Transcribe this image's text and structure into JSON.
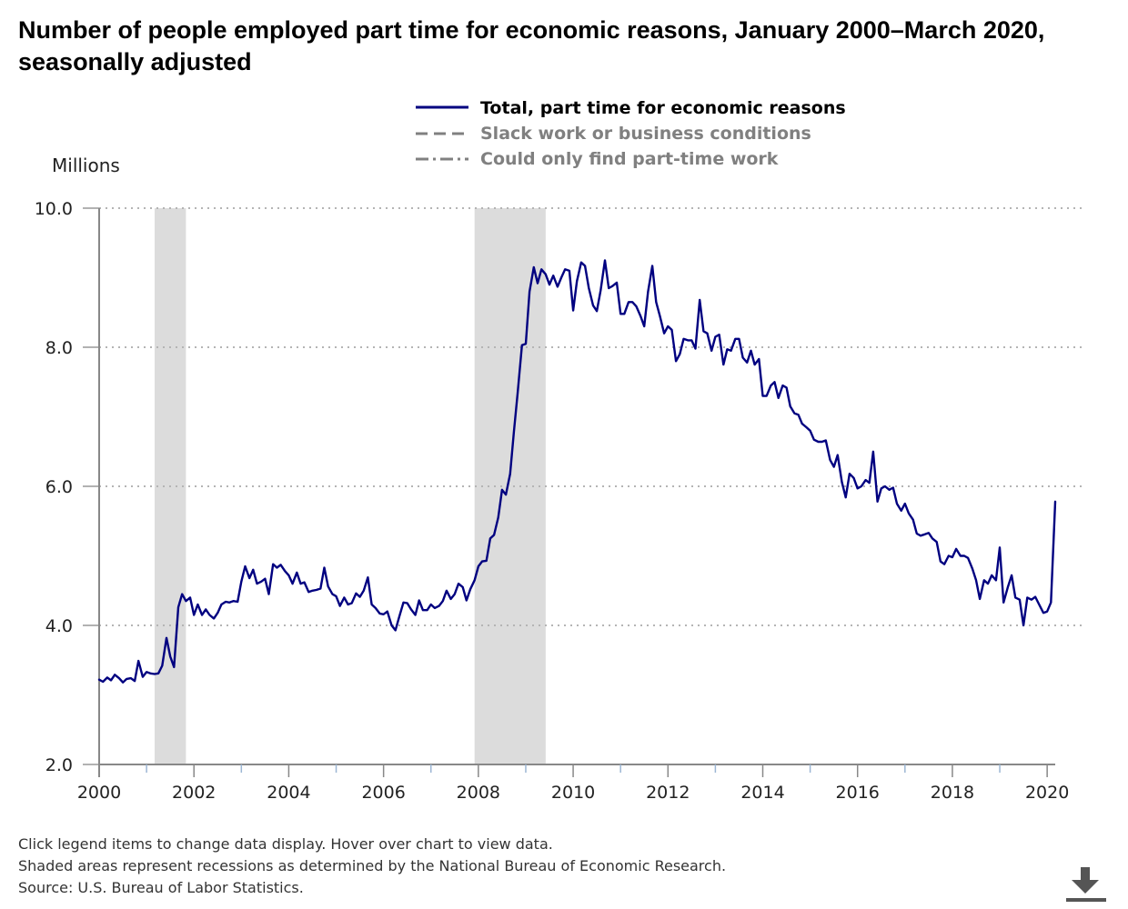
{
  "chart_data": {
    "type": "line",
    "title": "Number of people employed part time for economic reasons, January 2000–March 2020, seasonally adjusted",
    "ylabel": "Millions",
    "xlabel": "",
    "x_range": [
      2000,
      2020.17
    ],
    "ylim": [
      2.0,
      10.0
    ],
    "x_ticks": [
      "2000",
      "2002",
      "2004",
      "2006",
      "2008",
      "2010",
      "2012",
      "2014",
      "2016",
      "2018",
      "2020"
    ],
    "y_ticks": [
      "2.0",
      "4.0",
      "6.0",
      "8.0",
      "10.0"
    ],
    "grid": "horizontal dotted",
    "legend_placement": "top-center",
    "recessions": [
      [
        2001.17,
        2001.83
      ],
      [
        2007.92,
        2009.42
      ]
    ],
    "series": [
      {
        "name": "Total, part time for economic reasons",
        "style": "solid",
        "active": true,
        "color": "#000080",
        "points": [
          [
            2000.0,
            3.22
          ],
          [
            2000.08,
            3.19
          ],
          [
            2000.17,
            3.25
          ],
          [
            2000.25,
            3.21
          ],
          [
            2000.33,
            3.29
          ],
          [
            2000.42,
            3.24
          ],
          [
            2000.5,
            3.18
          ],
          [
            2000.58,
            3.23
          ],
          [
            2000.67,
            3.24
          ],
          [
            2000.75,
            3.2
          ],
          [
            2000.83,
            3.49
          ],
          [
            2000.92,
            3.26
          ],
          [
            2001.0,
            3.33
          ],
          [
            2001.08,
            3.31
          ],
          [
            2001.17,
            3.3
          ],
          [
            2001.25,
            3.31
          ],
          [
            2001.33,
            3.42
          ],
          [
            2001.42,
            3.82
          ],
          [
            2001.5,
            3.55
          ],
          [
            2001.58,
            3.4
          ],
          [
            2001.67,
            4.26
          ],
          [
            2001.75,
            4.45
          ],
          [
            2001.83,
            4.35
          ],
          [
            2001.92,
            4.4
          ],
          [
            2002.0,
            4.15
          ],
          [
            2002.08,
            4.3
          ],
          [
            2002.17,
            4.15
          ],
          [
            2002.25,
            4.23
          ],
          [
            2002.33,
            4.15
          ],
          [
            2002.42,
            4.1
          ],
          [
            2002.5,
            4.18
          ],
          [
            2002.58,
            4.3
          ],
          [
            2002.67,
            4.34
          ],
          [
            2002.75,
            4.33
          ],
          [
            2002.83,
            4.35
          ],
          [
            2002.92,
            4.34
          ],
          [
            2003.0,
            4.63
          ],
          [
            2003.08,
            4.85
          ],
          [
            2003.17,
            4.68
          ],
          [
            2003.25,
            4.8
          ],
          [
            2003.33,
            4.6
          ],
          [
            2003.42,
            4.63
          ],
          [
            2003.5,
            4.67
          ],
          [
            2003.58,
            4.45
          ],
          [
            2003.67,
            4.88
          ],
          [
            2003.75,
            4.83
          ],
          [
            2003.83,
            4.87
          ],
          [
            2003.92,
            4.78
          ],
          [
            2004.0,
            4.72
          ],
          [
            2004.08,
            4.6
          ],
          [
            2004.17,
            4.76
          ],
          [
            2004.25,
            4.6
          ],
          [
            2004.33,
            4.62
          ],
          [
            2004.42,
            4.48
          ],
          [
            2004.5,
            4.5
          ],
          [
            2004.58,
            4.51
          ],
          [
            2004.67,
            4.53
          ],
          [
            2004.75,
            4.83
          ],
          [
            2004.83,
            4.56
          ],
          [
            2004.92,
            4.45
          ],
          [
            2005.0,
            4.42
          ],
          [
            2005.08,
            4.28
          ],
          [
            2005.17,
            4.4
          ],
          [
            2005.25,
            4.3
          ],
          [
            2005.33,
            4.32
          ],
          [
            2005.42,
            4.46
          ],
          [
            2005.5,
            4.41
          ],
          [
            2005.58,
            4.5
          ],
          [
            2005.67,
            4.69
          ],
          [
            2005.75,
            4.3
          ],
          [
            2005.83,
            4.25
          ],
          [
            2005.92,
            4.17
          ],
          [
            2006.0,
            4.16
          ],
          [
            2006.08,
            4.2
          ],
          [
            2006.17,
            4.0
          ],
          [
            2006.25,
            3.93
          ],
          [
            2006.33,
            4.12
          ],
          [
            2006.42,
            4.33
          ],
          [
            2006.5,
            4.32
          ],
          [
            2006.58,
            4.23
          ],
          [
            2006.67,
            4.15
          ],
          [
            2006.75,
            4.36
          ],
          [
            2006.83,
            4.22
          ],
          [
            2006.92,
            4.22
          ],
          [
            2007.0,
            4.3
          ],
          [
            2007.08,
            4.25
          ],
          [
            2007.17,
            4.28
          ],
          [
            2007.25,
            4.35
          ],
          [
            2007.33,
            4.5
          ],
          [
            2007.42,
            4.38
          ],
          [
            2007.5,
            4.45
          ],
          [
            2007.58,
            4.6
          ],
          [
            2007.67,
            4.55
          ],
          [
            2007.75,
            4.36
          ],
          [
            2007.83,
            4.52
          ],
          [
            2007.92,
            4.65
          ],
          [
            2008.0,
            4.85
          ],
          [
            2008.08,
            4.92
          ],
          [
            2008.17,
            4.93
          ],
          [
            2008.25,
            5.25
          ],
          [
            2008.33,
            5.3
          ],
          [
            2008.42,
            5.55
          ],
          [
            2008.5,
            5.95
          ],
          [
            2008.58,
            5.88
          ],
          [
            2008.67,
            6.18
          ],
          [
            2008.75,
            6.78
          ],
          [
            2008.83,
            7.35
          ],
          [
            2008.92,
            8.03
          ],
          [
            2009.0,
            8.05
          ],
          [
            2009.08,
            8.8
          ],
          [
            2009.17,
            9.15
          ],
          [
            2009.25,
            8.92
          ],
          [
            2009.33,
            9.12
          ],
          [
            2009.42,
            9.05
          ],
          [
            2009.5,
            8.9
          ],
          [
            2009.58,
            9.03
          ],
          [
            2009.67,
            8.87
          ],
          [
            2009.75,
            9.0
          ],
          [
            2009.83,
            9.12
          ],
          [
            2009.92,
            9.1
          ],
          [
            2010.0,
            8.53
          ],
          [
            2010.08,
            8.95
          ],
          [
            2010.17,
            9.22
          ],
          [
            2010.25,
            9.17
          ],
          [
            2010.33,
            8.85
          ],
          [
            2010.42,
            8.6
          ],
          [
            2010.5,
            8.52
          ],
          [
            2010.58,
            8.82
          ],
          [
            2010.67,
            9.25
          ],
          [
            2010.75,
            8.85
          ],
          [
            2010.83,
            8.88
          ],
          [
            2010.92,
            8.93
          ],
          [
            2011.0,
            8.48
          ],
          [
            2011.08,
            8.48
          ],
          [
            2011.17,
            8.65
          ],
          [
            2011.25,
            8.65
          ],
          [
            2011.33,
            8.59
          ],
          [
            2011.42,
            8.45
          ],
          [
            2011.5,
            8.3
          ],
          [
            2011.58,
            8.8
          ],
          [
            2011.67,
            9.17
          ],
          [
            2011.75,
            8.65
          ],
          [
            2011.83,
            8.45
          ],
          [
            2011.92,
            8.2
          ],
          [
            2012.0,
            8.3
          ],
          [
            2012.08,
            8.25
          ],
          [
            2012.17,
            7.8
          ],
          [
            2012.25,
            7.9
          ],
          [
            2012.33,
            8.12
          ],
          [
            2012.42,
            8.1
          ],
          [
            2012.5,
            8.1
          ],
          [
            2012.58,
            7.98
          ],
          [
            2012.67,
            8.68
          ],
          [
            2012.75,
            8.23
          ],
          [
            2012.83,
            8.2
          ],
          [
            2012.92,
            7.95
          ],
          [
            2013.0,
            8.15
          ],
          [
            2013.08,
            8.18
          ],
          [
            2013.17,
            7.75
          ],
          [
            2013.25,
            7.97
          ],
          [
            2013.33,
            7.95
          ],
          [
            2013.42,
            8.12
          ],
          [
            2013.5,
            8.12
          ],
          [
            2013.58,
            7.85
          ],
          [
            2013.67,
            7.78
          ],
          [
            2013.75,
            7.95
          ],
          [
            2013.83,
            7.75
          ],
          [
            2013.92,
            7.83
          ],
          [
            2014.0,
            7.3
          ],
          [
            2014.08,
            7.3
          ],
          [
            2014.17,
            7.45
          ],
          [
            2014.25,
            7.5
          ],
          [
            2014.33,
            7.27
          ],
          [
            2014.42,
            7.45
          ],
          [
            2014.5,
            7.42
          ],
          [
            2014.58,
            7.15
          ],
          [
            2014.67,
            7.05
          ],
          [
            2014.75,
            7.03
          ],
          [
            2014.83,
            6.9
          ],
          [
            2014.92,
            6.85
          ],
          [
            2015.0,
            6.8
          ],
          [
            2015.08,
            6.67
          ],
          [
            2015.17,
            6.64
          ],
          [
            2015.25,
            6.64
          ],
          [
            2015.33,
            6.66
          ],
          [
            2015.42,
            6.38
          ],
          [
            2015.5,
            6.28
          ],
          [
            2015.58,
            6.45
          ],
          [
            2015.67,
            6.06
          ],
          [
            2015.75,
            5.84
          ],
          [
            2015.83,
            6.18
          ],
          [
            2015.92,
            6.12
          ],
          [
            2016.0,
            5.97
          ],
          [
            2016.08,
            6.0
          ],
          [
            2016.17,
            6.09
          ],
          [
            2016.25,
            6.05
          ],
          [
            2016.33,
            6.5
          ],
          [
            2016.42,
            5.78
          ],
          [
            2016.5,
            5.97
          ],
          [
            2016.58,
            6.0
          ],
          [
            2016.67,
            5.95
          ],
          [
            2016.75,
            5.98
          ],
          [
            2016.83,
            5.75
          ],
          [
            2016.92,
            5.65
          ],
          [
            2017.0,
            5.75
          ],
          [
            2017.08,
            5.61
          ],
          [
            2017.17,
            5.52
          ],
          [
            2017.25,
            5.32
          ],
          [
            2017.33,
            5.29
          ],
          [
            2017.42,
            5.31
          ],
          [
            2017.5,
            5.33
          ],
          [
            2017.58,
            5.25
          ],
          [
            2017.67,
            5.2
          ],
          [
            2017.75,
            4.92
          ],
          [
            2017.83,
            4.88
          ],
          [
            2017.92,
            5.0
          ],
          [
            2018.0,
            4.98
          ],
          [
            2018.08,
            5.1
          ],
          [
            2018.17,
            5.0
          ],
          [
            2018.25,
            5.0
          ],
          [
            2018.33,
            4.97
          ],
          [
            2018.42,
            4.82
          ],
          [
            2018.5,
            4.65
          ],
          [
            2018.58,
            4.38
          ],
          [
            2018.67,
            4.65
          ],
          [
            2018.75,
            4.6
          ],
          [
            2018.83,
            4.72
          ],
          [
            2018.92,
            4.65
          ],
          [
            2019.0,
            5.12
          ],
          [
            2019.08,
            4.33
          ],
          [
            2019.17,
            4.55
          ],
          [
            2019.25,
            4.72
          ],
          [
            2019.33,
            4.4
          ],
          [
            2019.42,
            4.37
          ],
          [
            2019.5,
            4.0
          ],
          [
            2019.58,
            4.4
          ],
          [
            2019.67,
            4.37
          ],
          [
            2019.75,
            4.41
          ],
          [
            2019.83,
            4.3
          ],
          [
            2019.92,
            4.18
          ],
          [
            2020.0,
            4.2
          ],
          [
            2020.08,
            4.33
          ],
          [
            2020.17,
            5.78
          ]
        ]
      },
      {
        "name": "Slack work or business conditions",
        "style": "dashed",
        "active": false,
        "color": "#808080"
      },
      {
        "name": "Could only find part-time work",
        "style": "dash-dot",
        "active": false,
        "color": "#808080"
      }
    ]
  },
  "notes": [
    "Click legend items to change data display. Hover over chart to view data.",
    "Shaded areas represent recessions as determined by the National Bureau of Economic Research.",
    "Source: U.S. Bureau of Labor Statistics."
  ],
  "download_icon": "download-icon",
  "colors": {
    "line": "#000080",
    "recession": "#dcdcdc",
    "grid": "#b4b4b4",
    "inactive": "#808080"
  }
}
